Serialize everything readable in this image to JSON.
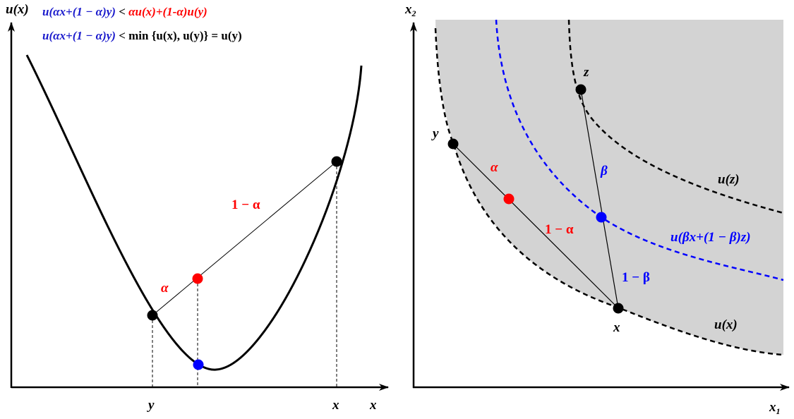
{
  "colors": {
    "black": "#000000",
    "red": "#ff0000",
    "blue": "#0000ff",
    "shade": "#d3d3d3",
    "blue_text": "#1a1acc"
  },
  "left_panel": {
    "y_axis_label": "u(x)",
    "x_axis_label": "x",
    "tick_y": "y",
    "tick_x": "x",
    "label_alpha": "α",
    "label_one_minus_alpha": "1 − α",
    "formula1": {
      "blue_part": "u(αx+(1 − α)y)",
      "black_part": " < ",
      "red_part": "αu(x)+(1-α)u(y)"
    },
    "formula2": {
      "blue_part": "u(αx+(1 − α)y)",
      "black_part": " < min {u(x), u(y)} = u(y)"
    }
  },
  "right_panel": {
    "x_axis_label": "x1",
    "y_axis_label": "x2",
    "point_x": "x",
    "point_y": "y",
    "point_z": "z",
    "label_alpha": "α",
    "label_one_minus_alpha": "1 − α",
    "label_beta": "β",
    "label_one_minus_beta": "1 − β",
    "curve_ux": "u(x)",
    "curve_uz": "u(z)",
    "curve_mix": "u(βx+(1 − β)z)"
  }
}
